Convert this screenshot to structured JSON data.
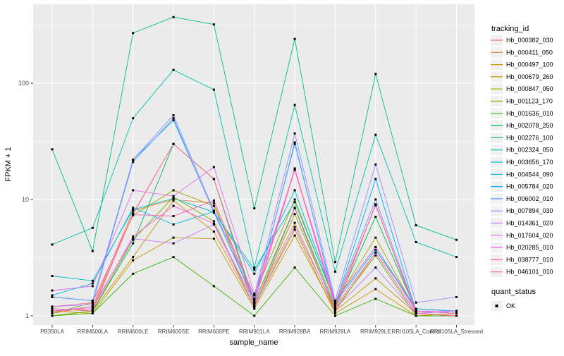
{
  "chart_data": {
    "type": "line",
    "title": "",
    "xlabel": "sample_name",
    "ylabel": "FPKM + 1",
    "y_scale": "log10",
    "y_ticks": [
      1,
      10,
      100
    ],
    "y_minor_ticks": [
      3.162,
      31.62,
      316.2
    ],
    "ylim": [
      0.95,
      450
    ],
    "grid": true,
    "legend_position": "right",
    "legend_title": "tracking_id",
    "quant_legend": {
      "title": "quant_status",
      "items": [
        "OK"
      ]
    },
    "point_shape": "square",
    "point_color": "#000000",
    "categories": [
      "PB350LA",
      "RRIM600LA",
      "RRIM600LE",
      "RRIM600SE",
      "RRIM600PE",
      "RRIM901LA",
      "RRIM928BA",
      "RRIM928LA",
      "RRIM928LE",
      "RRII105LA_Control",
      "RRII105LA_Stressed"
    ],
    "series": [
      {
        "name": "Hb_000382_030",
        "color": "#F8766D",
        "values": [
          1.1,
          1.15,
          7.5,
          30,
          15,
          1.3,
          18,
          1.2,
          9.0,
          1.05,
          1.1
        ]
      },
      {
        "name": "Hb_000411_050",
        "color": "#EA8331",
        "values": [
          1.05,
          1.2,
          8.0,
          10.0,
          9.3,
          1.25,
          6.3,
          1.1,
          3.5,
          1.05,
          1.0
        ]
      },
      {
        "name": "Hb_000497_100",
        "color": "#D89000",
        "values": [
          1.0,
          1.1,
          3.2,
          9.8,
          5.3,
          1.2,
          5.5,
          1.05,
          1.7,
          1.0,
          1.05
        ]
      },
      {
        "name": "Hb_000679_260",
        "color": "#C09B00",
        "values": [
          1.1,
          1.05,
          3.0,
          4.7,
          4.6,
          1.15,
          4.9,
          1.1,
          2.1,
          1.05,
          1.0
        ]
      },
      {
        "name": "Hb_000847_050",
        "color": "#A3A500",
        "values": [
          1.05,
          1.3,
          7.3,
          12.0,
          8.8,
          1.5,
          10.0,
          1.3,
          4.7,
          1.1,
          1.05
        ]
      },
      {
        "name": "Hb_001123_170",
        "color": "#7CAE00",
        "values": [
          1.0,
          1.1,
          4.5,
          10.5,
          6.5,
          1.2,
          7.5,
          1.15,
          3.3,
          1.0,
          1.0
        ]
      },
      {
        "name": "Hb_001636_010",
        "color": "#39B600",
        "values": [
          1.0,
          1.05,
          2.3,
          3.2,
          1.8,
          1.0,
          2.6,
          1.0,
          1.4,
          1.0,
          1.0
        ]
      },
      {
        "name": "Hb_002078_250",
        "color": "#00BB4E",
        "values": [
          1.15,
          1.1,
          4.2,
          30,
          15,
          1.3,
          8.5,
          1.2,
          7.1,
          1.1,
          1.05
        ]
      },
      {
        "name": "Hb_002276_100",
        "color": "#00C07F",
        "values": [
          27,
          3.6,
          270,
          370,
          320,
          8.4,
          240,
          2.9,
          120,
          6.0,
          4.5
        ]
      },
      {
        "name": "Hb_002324_050",
        "color": "#00C1A7",
        "values": [
          4.1,
          5.7,
          50,
          130,
          88,
          2.6,
          65,
          2.4,
          36,
          4.3,
          3.2
        ]
      },
      {
        "name": "Hb_003656_170",
        "color": "#00BFC4",
        "values": [
          2.2,
          2.0,
          8.2,
          10.2,
          7.8,
          2.5,
          9.5,
          1.35,
          3.9,
          1.15,
          1.1
        ]
      },
      {
        "name": "Hb_004544_090",
        "color": "#00B8E5",
        "values": [
          1.5,
          1.9,
          8.5,
          6.1,
          7.9,
          2.3,
          12.0,
          1.3,
          3.7,
          1.15,
          1.1
        ]
      },
      {
        "name": "Hb_005784_020",
        "color": "#00ACFC",
        "values": [
          1.45,
          1.35,
          22,
          48,
          7.8,
          1.35,
          31,
          1.25,
          15,
          1.1,
          1.05
        ]
      },
      {
        "name": "Hb_006002_010",
        "color": "#619CFF",
        "values": [
          1.45,
          1.35,
          21,
          50,
          7.7,
          1.4,
          30,
          1.3,
          10,
          1.1,
          1.05
        ]
      },
      {
        "name": "Hb_007894_030",
        "color": "#9590FF",
        "values": [
          1.2,
          1.25,
          22,
          53,
          8.0,
          1.5,
          37,
          1.35,
          20,
          1.3,
          1.45
        ]
      },
      {
        "name": "Hb_014361_020",
        "color": "#C77CFF",
        "values": [
          1.1,
          1.2,
          4.6,
          4.2,
          6.1,
          1.2,
          5.8,
          1.15,
          2.6,
          1.05,
          1.1
        ]
      },
      {
        "name": "Hb_017604_020",
        "color": "#E76BF3",
        "values": [
          1.65,
          1.8,
          12,
          10.7,
          19,
          1.55,
          18,
          1.35,
          3.9,
          1.1,
          1.1
        ]
      },
      {
        "name": "Hb_020285_010",
        "color": "#FA62DB",
        "values": [
          1.1,
          1.15,
          4.8,
          8.8,
          6.2,
          1.3,
          18.5,
          1.2,
          3.5,
          1.05,
          1.0
        ]
      },
      {
        "name": "Hb_038777_010",
        "color": "#FF62BC",
        "values": [
          1.2,
          1.3,
          7.4,
          7.2,
          9.8,
          1.4,
          18,
          1.25,
          8.9,
          1.1,
          1.05
        ]
      },
      {
        "name": "Hb_046101_010",
        "color": "#FF6A98",
        "values": [
          1.15,
          1.1,
          7.6,
          30,
          15,
          1.2,
          8.4,
          1.1,
          9.1,
          1.05,
          1.0
        ]
      }
    ]
  },
  "style": {
    "panel_bg": "#EBEBEB",
    "grid_color": "#FFFFFF",
    "tick_color": "#333333",
    "tick_label_color": "#4a4a4a",
    "legend_key_bg": "#F1F1F1"
  }
}
